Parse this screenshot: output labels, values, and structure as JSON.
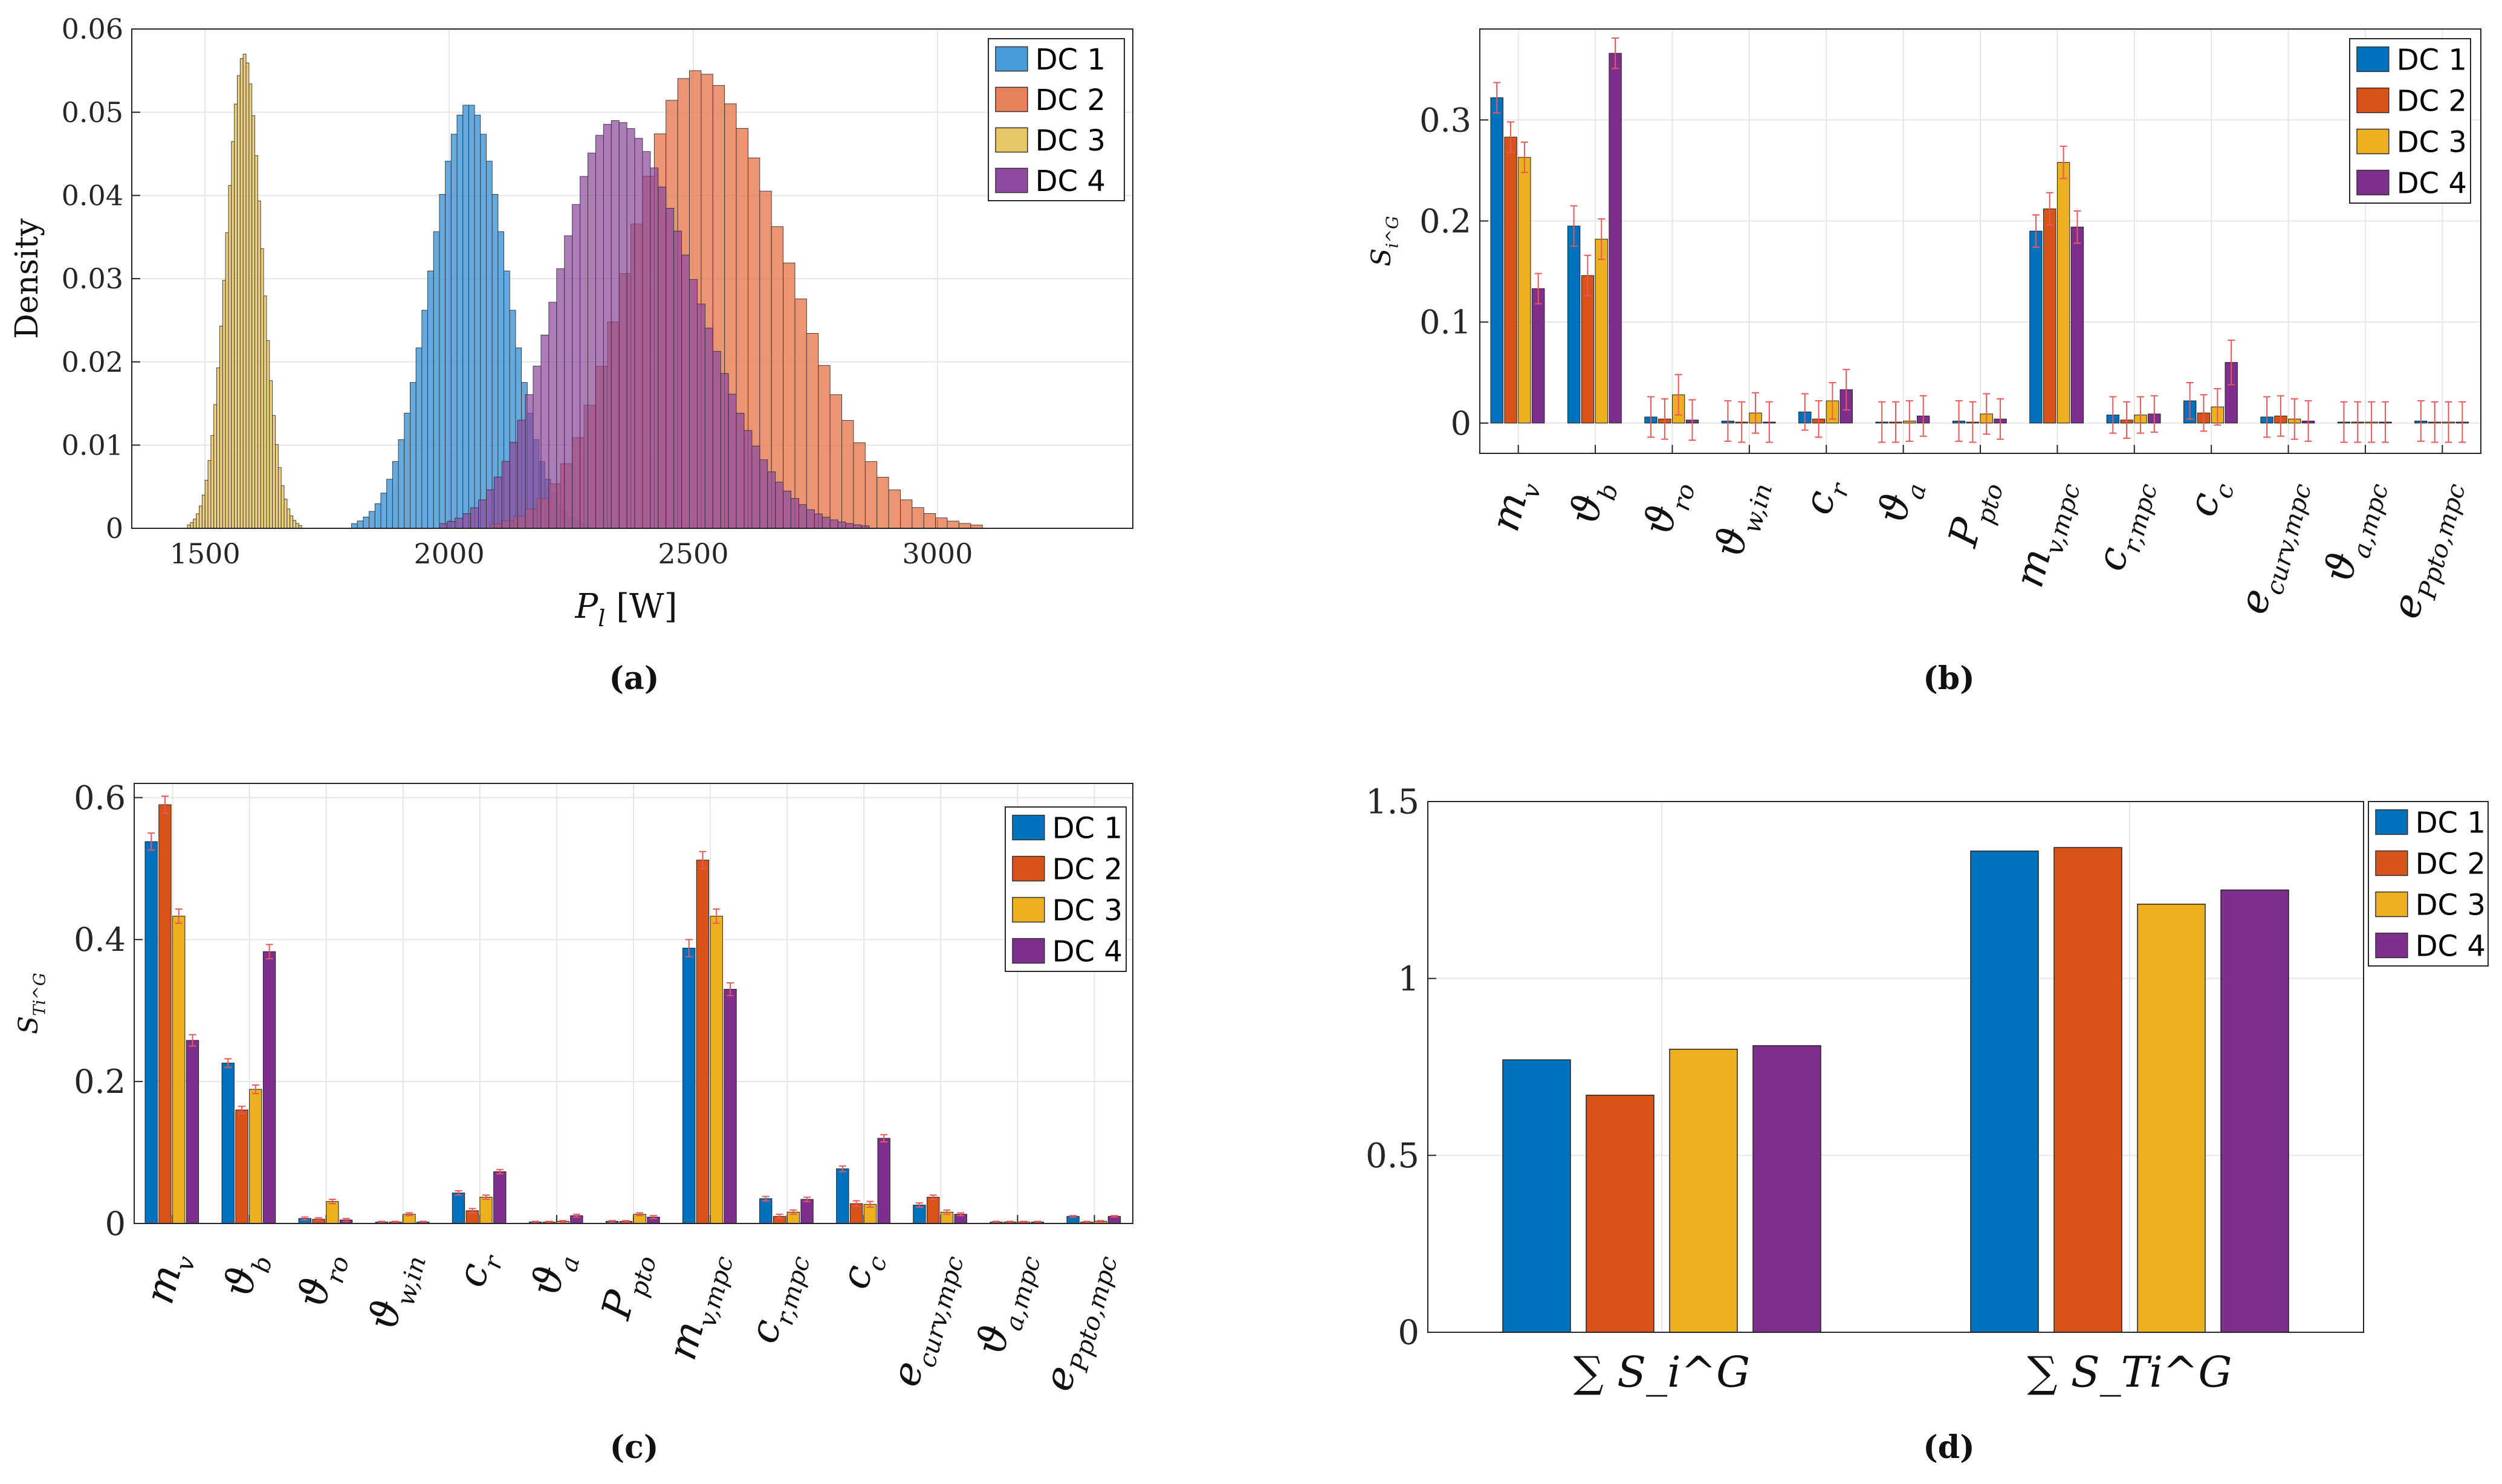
{
  "colors": {
    "dc1": "#0072BD",
    "dc2": "#D95319",
    "dc3": "#EDB120",
    "dc4": "#7E2F8E",
    "hist1": "#4A9BD9",
    "hist2": "#E8825A",
    "hist3": "#E8C766",
    "hist4": "#8E4A9E",
    "err": "#E8585A",
    "grid": "#E6E6E6",
    "axis": "#262626"
  },
  "chart_data": [
    {
      "id": "a",
      "type": "histogram",
      "caption": "(a)",
      "ylabel": "Density",
      "xlabel": "P_l [W]",
      "xlim": [
        1350,
        3400
      ],
      "ylim": [
        0,
        0.06
      ],
      "xticks": [
        "1500",
        "2000",
        "2500",
        "3000"
      ],
      "xtick_values": [
        1500,
        2000,
        2500,
        3000
      ],
      "yticks": [
        "0",
        "0.01",
        "0.02",
        "0.03",
        "0.04",
        "0.05",
        "0.06"
      ],
      "ytick_values": [
        0,
        0.01,
        0.02,
        0.03,
        0.04,
        0.05,
        0.06
      ],
      "legend": [
        "DC 1",
        "DC 2",
        "DC 3",
        "DC 4"
      ],
      "series": [
        {
          "name": "DC 1",
          "mean": 2040,
          "std": 78,
          "peak": 0.051,
          "min": 1800,
          "max": 2470,
          "binwidth": 12
        },
        {
          "name": "DC 2",
          "mean": 2505,
          "std": 150,
          "peak": 0.055,
          "min": 2060,
          "max": 3270,
          "binwidth": 24
        },
        {
          "name": "DC 3",
          "mean": 1580,
          "std": 36,
          "peak": 0.057,
          "min": 1440,
          "max": 1760,
          "binwidth": 6
        },
        {
          "name": "DC 4",
          "mean": 2340,
          "std": 132,
          "peak": 0.049,
          "min": 1980,
          "max": 2960,
          "binwidth": 16
        }
      ]
    },
    {
      "id": "b",
      "type": "bar",
      "caption": "(b)",
      "ylabel": "S_i^G",
      "ylim": [
        -0.03,
        0.39
      ],
      "yticks": [
        "0",
        "0.1",
        "0.2",
        "0.3"
      ],
      "ytick_values": [
        0,
        0.1,
        0.2,
        0.3
      ],
      "legend": [
        "DC 1",
        "DC 2",
        "DC 3",
        "DC 4"
      ],
      "categories": [
        "m_v",
        "ϑ_b",
        "ϑ_ro",
        "ϑ_w,in",
        "c_r",
        "ϑ_a",
        "P_pto",
        "m_v,mpc",
        "c_r,mpc",
        "c_c",
        "e_curv,mpc",
        "ϑ_a,mpc",
        "e_Ppto,mpc"
      ],
      "series": [
        {
          "name": "DC 1",
          "values": [
            0.322,
            0.195,
            0.006,
            0.002,
            0.011,
            0.001,
            0.002,
            0.19,
            0.008,
            0.022,
            0.006,
            0.001,
            0.002
          ]
        },
        {
          "name": "DC 2",
          "values": [
            0.283,
            0.146,
            0.004,
            0.001,
            0.004,
            0.001,
            0.001,
            0.212,
            0.003,
            0.01,
            0.007,
            0.001,
            0.001
          ]
        },
        {
          "name": "DC 3",
          "values": [
            0.263,
            0.182,
            0.028,
            0.01,
            0.022,
            0.002,
            0.009,
            0.258,
            0.008,
            0.016,
            0.004,
            0.001,
            0.001
          ]
        },
        {
          "name": "DC 4",
          "values": [
            0.133,
            0.366,
            0.003,
            0.001,
            0.033,
            0.007,
            0.004,
            0.194,
            0.009,
            0.06,
            0.002,
            0.001,
            0.001
          ]
        }
      ],
      "errors": [
        [
          0.015,
          0.02,
          0.02,
          0.02,
          0.018,
          0.02,
          0.02,
          0.016,
          0.018,
          0.018,
          0.02,
          0.02,
          0.02
        ],
        [
          0.015,
          0.02,
          0.02,
          0.02,
          0.018,
          0.02,
          0.02,
          0.016,
          0.018,
          0.018,
          0.02,
          0.02,
          0.02
        ],
        [
          0.015,
          0.02,
          0.02,
          0.02,
          0.018,
          0.02,
          0.02,
          0.016,
          0.018,
          0.018,
          0.02,
          0.02,
          0.02
        ],
        [
          0.015,
          0.015,
          0.02,
          0.02,
          0.02,
          0.02,
          0.02,
          0.016,
          0.018,
          0.022,
          0.02,
          0.02,
          0.02
        ]
      ]
    },
    {
      "id": "c",
      "type": "bar",
      "caption": "(c)",
      "ylabel": "S_Ti^G",
      "ylim": [
        0,
        0.62
      ],
      "yticks": [
        "0",
        "0.2",
        "0.4",
        "0.6"
      ],
      "ytick_values": [
        0,
        0.2,
        0.4,
        0.6
      ],
      "legend": [
        "DC 1",
        "DC 2",
        "DC 3",
        "DC 4"
      ],
      "categories": [
        "m_v",
        "ϑ_b",
        "ϑ_ro",
        "ϑ_w,in",
        "c_r",
        "ϑ_a",
        "P_pto",
        "m_v,mpc",
        "c_r,mpc",
        "c_c",
        "e_curv,mpc",
        "ϑ_a,mpc",
        "e_Ppto,mpc"
      ],
      "series": [
        {
          "name": "DC 1",
          "values": [
            0.538,
            0.226,
            0.007,
            0.002,
            0.043,
            0.002,
            0.003,
            0.388,
            0.035,
            0.077,
            0.026,
            0.002,
            0.01
          ]
        },
        {
          "name": "DC 2",
          "values": [
            0.59,
            0.16,
            0.006,
            0.002,
            0.018,
            0.002,
            0.003,
            0.512,
            0.01,
            0.028,
            0.037,
            0.002,
            0.002
          ]
        },
        {
          "name": "DC 3",
          "values": [
            0.433,
            0.189,
            0.031,
            0.013,
            0.037,
            0.003,
            0.013,
            0.433,
            0.016,
            0.027,
            0.016,
            0.002,
            0.003
          ]
        },
        {
          "name": "DC 4",
          "values": [
            0.258,
            0.383,
            0.005,
            0.002,
            0.073,
            0.011,
            0.009,
            0.33,
            0.034,
            0.12,
            0.013,
            0.002,
            0.01
          ]
        }
      ],
      "errors": [
        [
          0.012,
          0.006,
          0.002,
          0.001,
          0.003,
          0.001,
          0.001,
          0.012,
          0.003,
          0.004,
          0.003,
          0.001,
          0.001
        ],
        [
          0.012,
          0.005,
          0.002,
          0.001,
          0.003,
          0.001,
          0.001,
          0.012,
          0.003,
          0.004,
          0.003,
          0.001,
          0.001
        ],
        [
          0.01,
          0.006,
          0.003,
          0.002,
          0.003,
          0.001,
          0.002,
          0.01,
          0.003,
          0.004,
          0.003,
          0.001,
          0.001
        ],
        [
          0.008,
          0.01,
          0.002,
          0.001,
          0.003,
          0.002,
          0.002,
          0.009,
          0.003,
          0.005,
          0.002,
          0.001,
          0.001
        ]
      ]
    },
    {
      "id": "d",
      "type": "bar",
      "caption": "(d)",
      "ylim": [
        0,
        1.5
      ],
      "yticks": [
        "0",
        "0.5",
        "1",
        "1.5"
      ],
      "ytick_values": [
        0,
        0.5,
        1,
        1.5
      ],
      "legend": [
        "DC 1",
        "DC 2",
        "DC 3",
        "DC 4"
      ],
      "categories": [
        "∑ S_i^G",
        "∑ S_Ti^G"
      ],
      "series": [
        {
          "name": "DC 1",
          "values": [
            0.77,
            1.36
          ]
        },
        {
          "name": "DC 2",
          "values": [
            0.67,
            1.37
          ]
        },
        {
          "name": "DC 3",
          "values": [
            0.8,
            1.21
          ]
        },
        {
          "name": "DC 4",
          "values": [
            0.81,
            1.25
          ]
        }
      ]
    }
  ]
}
